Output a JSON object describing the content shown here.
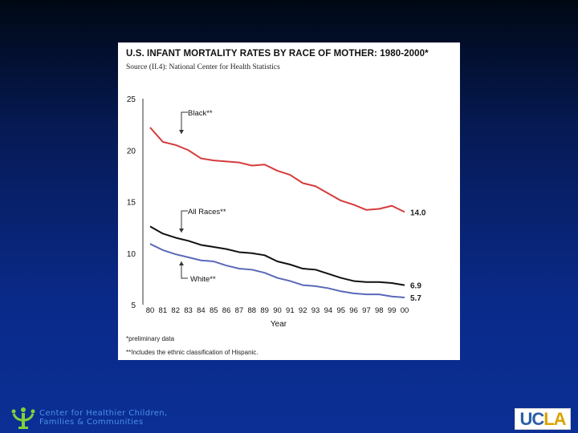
{
  "slide": {
    "organization": {
      "line1": "Center for Healthier Children,",
      "line2": "Families & Communities"
    },
    "ucla_logo": "UCLA"
  },
  "chart_data": {
    "type": "line",
    "title": "U.S. INFANT MORTALITY RATES BY RACE OF MOTHER:  1980-2000*",
    "subtitle": "Source (II.4):  National Center for Health Statistics",
    "xlabel": "Year",
    "ylabel": "",
    "categories": [
      "80",
      "81",
      "82",
      "83",
      "84",
      "85",
      "86",
      "87",
      "88",
      "89",
      "90",
      "91",
      "92",
      "93",
      "94",
      "95",
      "96",
      "97",
      "98",
      "99",
      "00"
    ],
    "ylim": [
      5,
      25
    ],
    "yticks": [
      5,
      10,
      15,
      20,
      25
    ],
    "series": [
      {
        "name": "Black**",
        "color": "#d63b3b",
        "values": [
          22.2,
          20.8,
          20.5,
          20.0,
          19.2,
          19.0,
          18.9,
          18.8,
          18.5,
          18.6,
          18.0,
          17.6,
          16.8,
          16.5,
          15.8,
          15.1,
          14.7,
          14.2,
          14.3,
          14.6,
          14.0
        ],
        "end_label": "14.0"
      },
      {
        "name": "All Races**",
        "color": "#111111",
        "values": [
          12.6,
          11.9,
          11.5,
          11.2,
          10.8,
          10.6,
          10.4,
          10.1,
          10.0,
          9.8,
          9.2,
          8.9,
          8.5,
          8.4,
          8.0,
          7.6,
          7.3,
          7.2,
          7.2,
          7.1,
          6.9
        ],
        "end_label": "6.9"
      },
      {
        "name": "White**",
        "color": "#5a68b8",
        "values": [
          10.9,
          10.3,
          9.9,
          9.6,
          9.3,
          9.2,
          8.8,
          8.5,
          8.4,
          8.1,
          7.6,
          7.3,
          6.9,
          6.8,
          6.6,
          6.3,
          6.1,
          6.0,
          6.0,
          5.8,
          5.7
        ],
        "end_label": "5.7"
      }
    ],
    "annotations": {
      "black_label": "Black**",
      "all_races_label": "All Races**",
      "white_label": "White**"
    },
    "footnotes": {
      "preliminary": "*preliminary data",
      "hispanic": "**Includes the ethnic classification of Hispanic."
    }
  }
}
